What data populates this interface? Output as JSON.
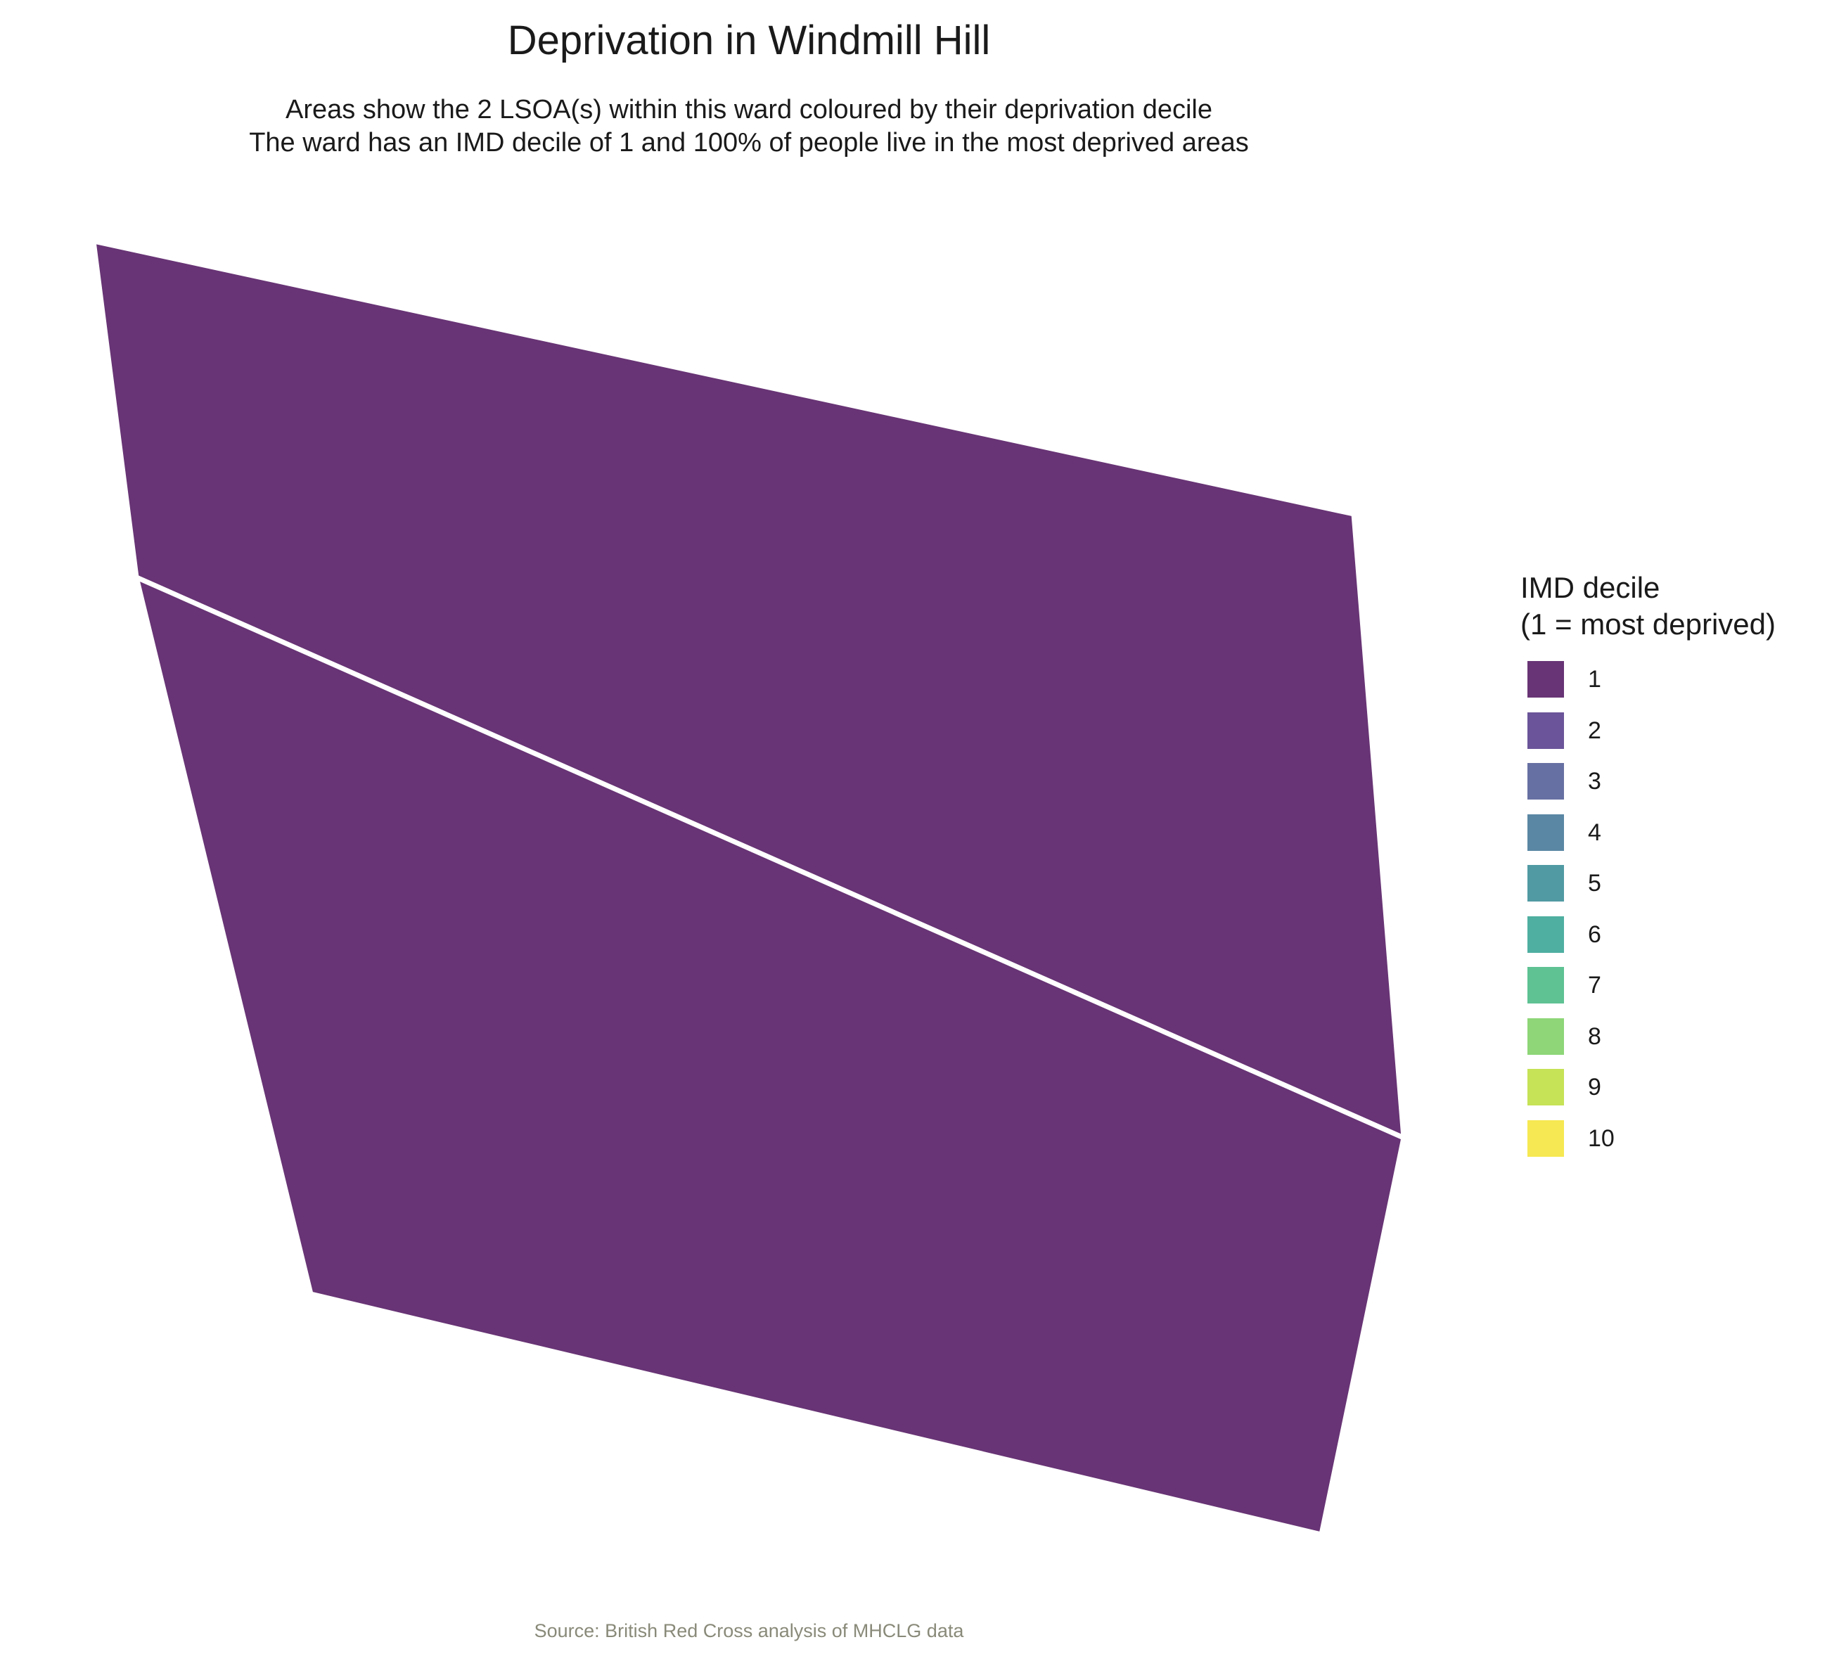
{
  "title": "Deprivation in Windmill Hill",
  "subtitle": [
    "Areas show the 2 LSOA(s) within this ward coloured by their deprivation decile",
    "The ward has an IMD decile of 1 and 100% of people live in the most deprived areas"
  ],
  "caption": "Source: British Red Cross analysis of MHCLG data",
  "map": {
    "areas": [
      {
        "decile": 1,
        "color": "#683475"
      },
      {
        "decile": 1,
        "color": "#683475"
      }
    ]
  },
  "legend": {
    "title_lines": [
      "IMD decile",
      "(1 = most deprived)"
    ],
    "items": [
      {
        "label": "1",
        "color": "#683475"
      },
      {
        "label": "2",
        "color": "#6b5499"
      },
      {
        "label": "3",
        "color": "#6770a2"
      },
      {
        "label": "4",
        "color": "#5a87a4"
      },
      {
        "label": "5",
        "color": "#519aa3"
      },
      {
        "label": "6",
        "color": "#4fafa1"
      },
      {
        "label": "7",
        "color": "#5ec293"
      },
      {
        "label": "8",
        "color": "#8ed678"
      },
      {
        "label": "9",
        "color": "#c6e256"
      },
      {
        "label": "10",
        "color": "#f6e852"
      }
    ]
  }
}
